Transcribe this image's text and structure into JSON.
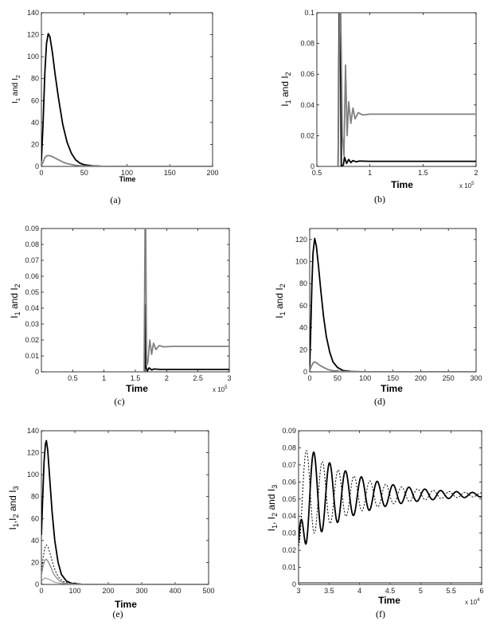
{
  "chart_data": [
    {
      "type": "line",
      "caption": "(a)",
      "xlabel": "Time",
      "ylabel_parts": [
        [
          "I",
          ""
        ],
        [
          "1",
          "sub"
        ],
        [
          " and I",
          ""
        ],
        [
          "2",
          "sub"
        ]
      ],
      "xlim": [
        0,
        200
      ],
      "ylim": [
        0,
        140
      ],
      "xticks": [
        0,
        50,
        100,
        150,
        200
      ],
      "yticks": [
        0,
        20,
        40,
        60,
        80,
        100,
        120,
        140
      ],
      "series": [
        {
          "color": "#000000",
          "width": 1.8,
          "dash": "",
          "points": [
            [
              0,
              5
            ],
            [
              2,
              40
            ],
            [
              4,
              85
            ],
            [
              6,
              112
            ],
            [
              8,
              121
            ],
            [
              10,
              118
            ],
            [
              13,
              103
            ],
            [
              16,
              84
            ],
            [
              20,
              62
            ],
            [
              25,
              38
            ],
            [
              30,
              22
            ],
            [
              35,
              12
            ],
            [
              40,
              6
            ],
            [
              45,
              3
            ],
            [
              50,
              1.5
            ],
            [
              60,
              0.5
            ],
            [
              70,
              0.2
            ],
            [
              100,
              0
            ],
            [
              200,
              0
            ]
          ]
        },
        {
          "color": "#808080",
          "width": 1.8,
          "dash": "",
          "points": [
            [
              0,
              1
            ],
            [
              2,
              4
            ],
            [
              4,
              8
            ],
            [
              6,
              9.5
            ],
            [
              8,
              10
            ],
            [
              11,
              9.5
            ],
            [
              15,
              8
            ],
            [
              20,
              6
            ],
            [
              25,
              4
            ],
            [
              30,
              2.5
            ],
            [
              40,
              1
            ],
            [
              50,
              0.4
            ],
            [
              70,
              0.1
            ],
            [
              100,
              0
            ],
            [
              200,
              0
            ]
          ]
        }
      ]
    },
    {
      "type": "line",
      "caption": "(b)",
      "xlabel": "Time",
      "ylabel_parts": [
        [
          "I",
          ""
        ],
        [
          "1",
          "sub"
        ],
        [
          " and I",
          ""
        ],
        [
          "2",
          "sub"
        ]
      ],
      "xlim": [
        0.5,
        2
      ],
      "ylim": [
        0,
        0.1
      ],
      "xticks": [
        0.5,
        1,
        1.5,
        2
      ],
      "yticks": [
        0,
        0.02,
        0.04,
        0.06,
        0.08,
        0.1
      ],
      "xmultiplier": "x 10",
      "xmultiplier_exp": "5",
      "series": [
        {
          "color": "#000000",
          "width": 1.8,
          "dash": "",
          "points": [
            [
              0.7,
              0
            ],
            [
              0.71,
              0.1
            ],
            [
              0.72,
              0.1
            ],
            [
              0.73,
              0
            ],
            [
              0.75,
              0.001
            ],
            [
              0.76,
              0.006
            ],
            [
              0.78,
              0.002
            ],
            [
              0.8,
              0.0045
            ],
            [
              0.82,
              0.0025
            ],
            [
              0.84,
              0.0038
            ],
            [
              0.87,
              0.003
            ],
            [
              0.9,
              0.0035
            ],
            [
              1.0,
              0.0033
            ],
            [
              1.5,
              0.0033
            ],
            [
              2,
              0.0033
            ]
          ]
        },
        {
          "color": "#808080",
          "width": 1.8,
          "dash": "",
          "points": [
            [
              0.7,
              0
            ],
            [
              0.715,
              0.1
            ],
            [
              0.725,
              0.1
            ],
            [
              0.74,
              0.02
            ],
            [
              0.755,
              0.007
            ],
            [
              0.77,
              0.066
            ],
            [
              0.785,
              0.02
            ],
            [
              0.8,
              0.042
            ],
            [
              0.82,
              0.028
            ],
            [
              0.84,
              0.038
            ],
            [
              0.86,
              0.031
            ],
            [
              0.89,
              0.035
            ],
            [
              0.93,
              0.0335
            ],
            [
              1.0,
              0.034
            ],
            [
              1.5,
              0.034
            ],
            [
              2,
              0.034
            ]
          ]
        }
      ]
    },
    {
      "type": "line",
      "caption": "(c)",
      "xlabel": "Time",
      "ylabel_parts": [
        [
          "I",
          ""
        ],
        [
          "1",
          "sub"
        ],
        [
          " and I",
          ""
        ],
        [
          "2",
          "sub"
        ]
      ],
      "xlim": [
        0,
        3
      ],
      "ylim": [
        0,
        0.09
      ],
      "xticks": [
        0.5,
        1,
        1.5,
        2,
        2.5,
        3
      ],
      "yticks": [
        0,
        0.01,
        0.02,
        0.03,
        0.04,
        0.05,
        0.06,
        0.07,
        0.08,
        0.09
      ],
      "xmultiplier": "x 10",
      "xmultiplier_exp": "5",
      "series": [
        {
          "color": "#000000",
          "width": 1.8,
          "dash": "",
          "points": [
            [
              1.65,
              0
            ],
            [
              1.66,
              0.042
            ],
            [
              1.67,
              0.003
            ],
            [
              1.69,
              0.0005
            ],
            [
              1.72,
              0.0025
            ],
            [
              1.76,
              0.0012
            ],
            [
              1.8,
              0.0018
            ],
            [
              1.9,
              0.0015
            ],
            [
              3,
              0.0015
            ]
          ]
        },
        {
          "color": "#808080",
          "width": 1.8,
          "dash": "",
          "points": [
            [
              1.64,
              0
            ],
            [
              1.655,
              0.09
            ],
            [
              1.665,
              0.09
            ],
            [
              1.68,
              0.004
            ],
            [
              1.7,
              0.006
            ],
            [
              1.73,
              0.02
            ],
            [
              1.76,
              0.011
            ],
            [
              1.79,
              0.018
            ],
            [
              1.83,
              0.014
            ],
            [
              1.88,
              0.0165
            ],
            [
              1.95,
              0.0157
            ],
            [
              2.1,
              0.016
            ],
            [
              3,
              0.016
            ]
          ]
        }
      ]
    },
    {
      "type": "line",
      "caption": "(d)",
      "xlabel": "Time",
      "ylabel_parts": [
        [
          "I",
          ""
        ],
        [
          "1",
          "sub"
        ],
        [
          " and I",
          ""
        ],
        [
          "2",
          "sub"
        ]
      ],
      "xlim": [
        0,
        300
      ],
      "ylim": [
        0,
        130
      ],
      "xticks": [
        0,
        50,
        100,
        150,
        200,
        250,
        300
      ],
      "yticks": [
        0,
        20,
        40,
        60,
        80,
        100,
        120
      ],
      "series": [
        {
          "color": "#000000",
          "width": 1.8,
          "dash": "",
          "points": [
            [
              0,
              5
            ],
            [
              2,
              40
            ],
            [
              4,
              80
            ],
            [
              6,
              108
            ],
            [
              9,
              121
            ],
            [
              12,
              114
            ],
            [
              16,
              95
            ],
            [
              20,
              74
            ],
            [
              25,
              50
            ],
            [
              30,
              32
            ],
            [
              36,
              18
            ],
            [
              42,
              9
            ],
            [
              50,
              4
            ],
            [
              60,
              1.2
            ],
            [
              75,
              0.3
            ],
            [
              100,
              0
            ],
            [
              300,
              0
            ]
          ]
        },
        {
          "color": "#808080",
          "width": 1.8,
          "dash": "",
          "points": [
            [
              0,
              1
            ],
            [
              3,
              5
            ],
            [
              6,
              8
            ],
            [
              9,
              9
            ],
            [
              13,
              8
            ],
            [
              18,
              6
            ],
            [
              25,
              4
            ],
            [
              32,
              2.3
            ],
            [
              40,
              1.2
            ],
            [
              55,
              0.4
            ],
            [
              80,
              0.1
            ],
            [
              100,
              0
            ],
            [
              300,
              0
            ]
          ]
        }
      ]
    },
    {
      "type": "line",
      "caption": "(e)",
      "xlabel": "Time",
      "ylabel_parts": [
        [
          "I",
          ""
        ],
        [
          "1",
          "sub"
        ],
        [
          ",I",
          ""
        ],
        [
          "2",
          "sub"
        ],
        [
          " and I",
          ""
        ],
        [
          "3",
          "sub"
        ]
      ],
      "xlim": [
        0,
        500
      ],
      "ylim": [
        0,
        140
      ],
      "xticks": [
        0,
        100,
        200,
        300,
        400,
        500
      ],
      "yticks": [
        0,
        20,
        40,
        60,
        80,
        100,
        120,
        140
      ],
      "series": [
        {
          "color": "#000000",
          "width": 1.8,
          "dash": "",
          "points": [
            [
              0,
              45
            ],
            [
              4,
              80
            ],
            [
              8,
              112
            ],
            [
              12,
              128
            ],
            [
              15,
              131
            ],
            [
              19,
              122
            ],
            [
              25,
              96
            ],
            [
              32,
              66
            ],
            [
              40,
              40
            ],
            [
              50,
              20
            ],
            [
              60,
              9
            ],
            [
              75,
              3
            ],
            [
              90,
              1
            ],
            [
              120,
              0.2
            ],
            [
              150,
              0
            ],
            [
              500,
              0
            ]
          ]
        },
        {
          "color": "#000000",
          "width": 1,
          "dash": "2,2",
          "points": [
            [
              0,
              10
            ],
            [
              5,
              24
            ],
            [
              10,
              33
            ],
            [
              15,
              36
            ],
            [
              20,
              34
            ],
            [
              28,
              26
            ],
            [
              36,
              17
            ],
            [
              45,
              10
            ],
            [
              55,
              5
            ],
            [
              70,
              2
            ],
            [
              90,
              0.5
            ],
            [
              130,
              0
            ],
            [
              500,
              0
            ]
          ]
        },
        {
          "color": "#909090",
          "width": 1.4,
          "dash": "",
          "points": [
            [
              0,
              8
            ],
            [
              5,
              17
            ],
            [
              10,
              22
            ],
            [
              15,
              23
            ],
            [
              20,
              21
            ],
            [
              28,
              16
            ],
            [
              36,
              10
            ],
            [
              45,
              6
            ],
            [
              55,
              3
            ],
            [
              70,
              1
            ],
            [
              100,
              0.2
            ],
            [
              140,
              0
            ],
            [
              500,
              0
            ]
          ]
        },
        {
          "color": "#909090",
          "width": 1,
          "dash": "",
          "points": [
            [
              0,
              3
            ],
            [
              10,
              6
            ],
            [
              20,
              5
            ],
            [
              30,
              3.5
            ],
            [
              40,
              2
            ],
            [
              60,
              0.8
            ],
            [
              90,
              0.2
            ],
            [
              130,
              0
            ],
            [
              500,
              0
            ]
          ]
        }
      ]
    },
    {
      "type": "line",
      "caption": "(f)",
      "xlabel": "Time",
      "ylabel_parts": [
        [
          "I",
          ""
        ],
        [
          "1",
          "sub"
        ],
        [
          ", I",
          ""
        ],
        [
          "2",
          "sub"
        ],
        [
          " and I",
          ""
        ],
        [
          "3",
          "sub"
        ]
      ],
      "xlim": [
        3,
        6
      ],
      "ylim": [
        0,
        0.09
      ],
      "xticks": [
        3,
        3.5,
        4,
        4.5,
        5,
        5.5,
        6
      ],
      "yticks": [
        0,
        0.01,
        0.02,
        0.03,
        0.04,
        0.05,
        0.06,
        0.07,
        0.08,
        0.09
      ],
      "xmultiplier": "x 10",
      "xmultiplier_exp": "4",
      "series": [
        {
          "color": "#000000",
          "width": 1.8,
          "dash": "",
          "osc": {
            "start": 3.0,
            "end": 6.0,
            "base": 0.0525,
            "amp": 0.033,
            "period": 0.26,
            "decay": 0.9,
            "phase": 0.12,
            "y0": 0.025
          }
        },
        {
          "color": "#000000",
          "width": 1,
          "dash": "2,2",
          "osc": {
            "start": 3.0,
            "end": 6.0,
            "base": 0.0525,
            "amp": 0.03,
            "period": 0.26,
            "decay": 0.9,
            "phase": 0.0,
            "y0": 0.045
          }
        },
        {
          "color": "#808080",
          "width": 1.6,
          "dash": "",
          "points": [
            [
              3,
              0.001
            ],
            [
              6,
              0.001
            ]
          ]
        }
      ]
    }
  ]
}
